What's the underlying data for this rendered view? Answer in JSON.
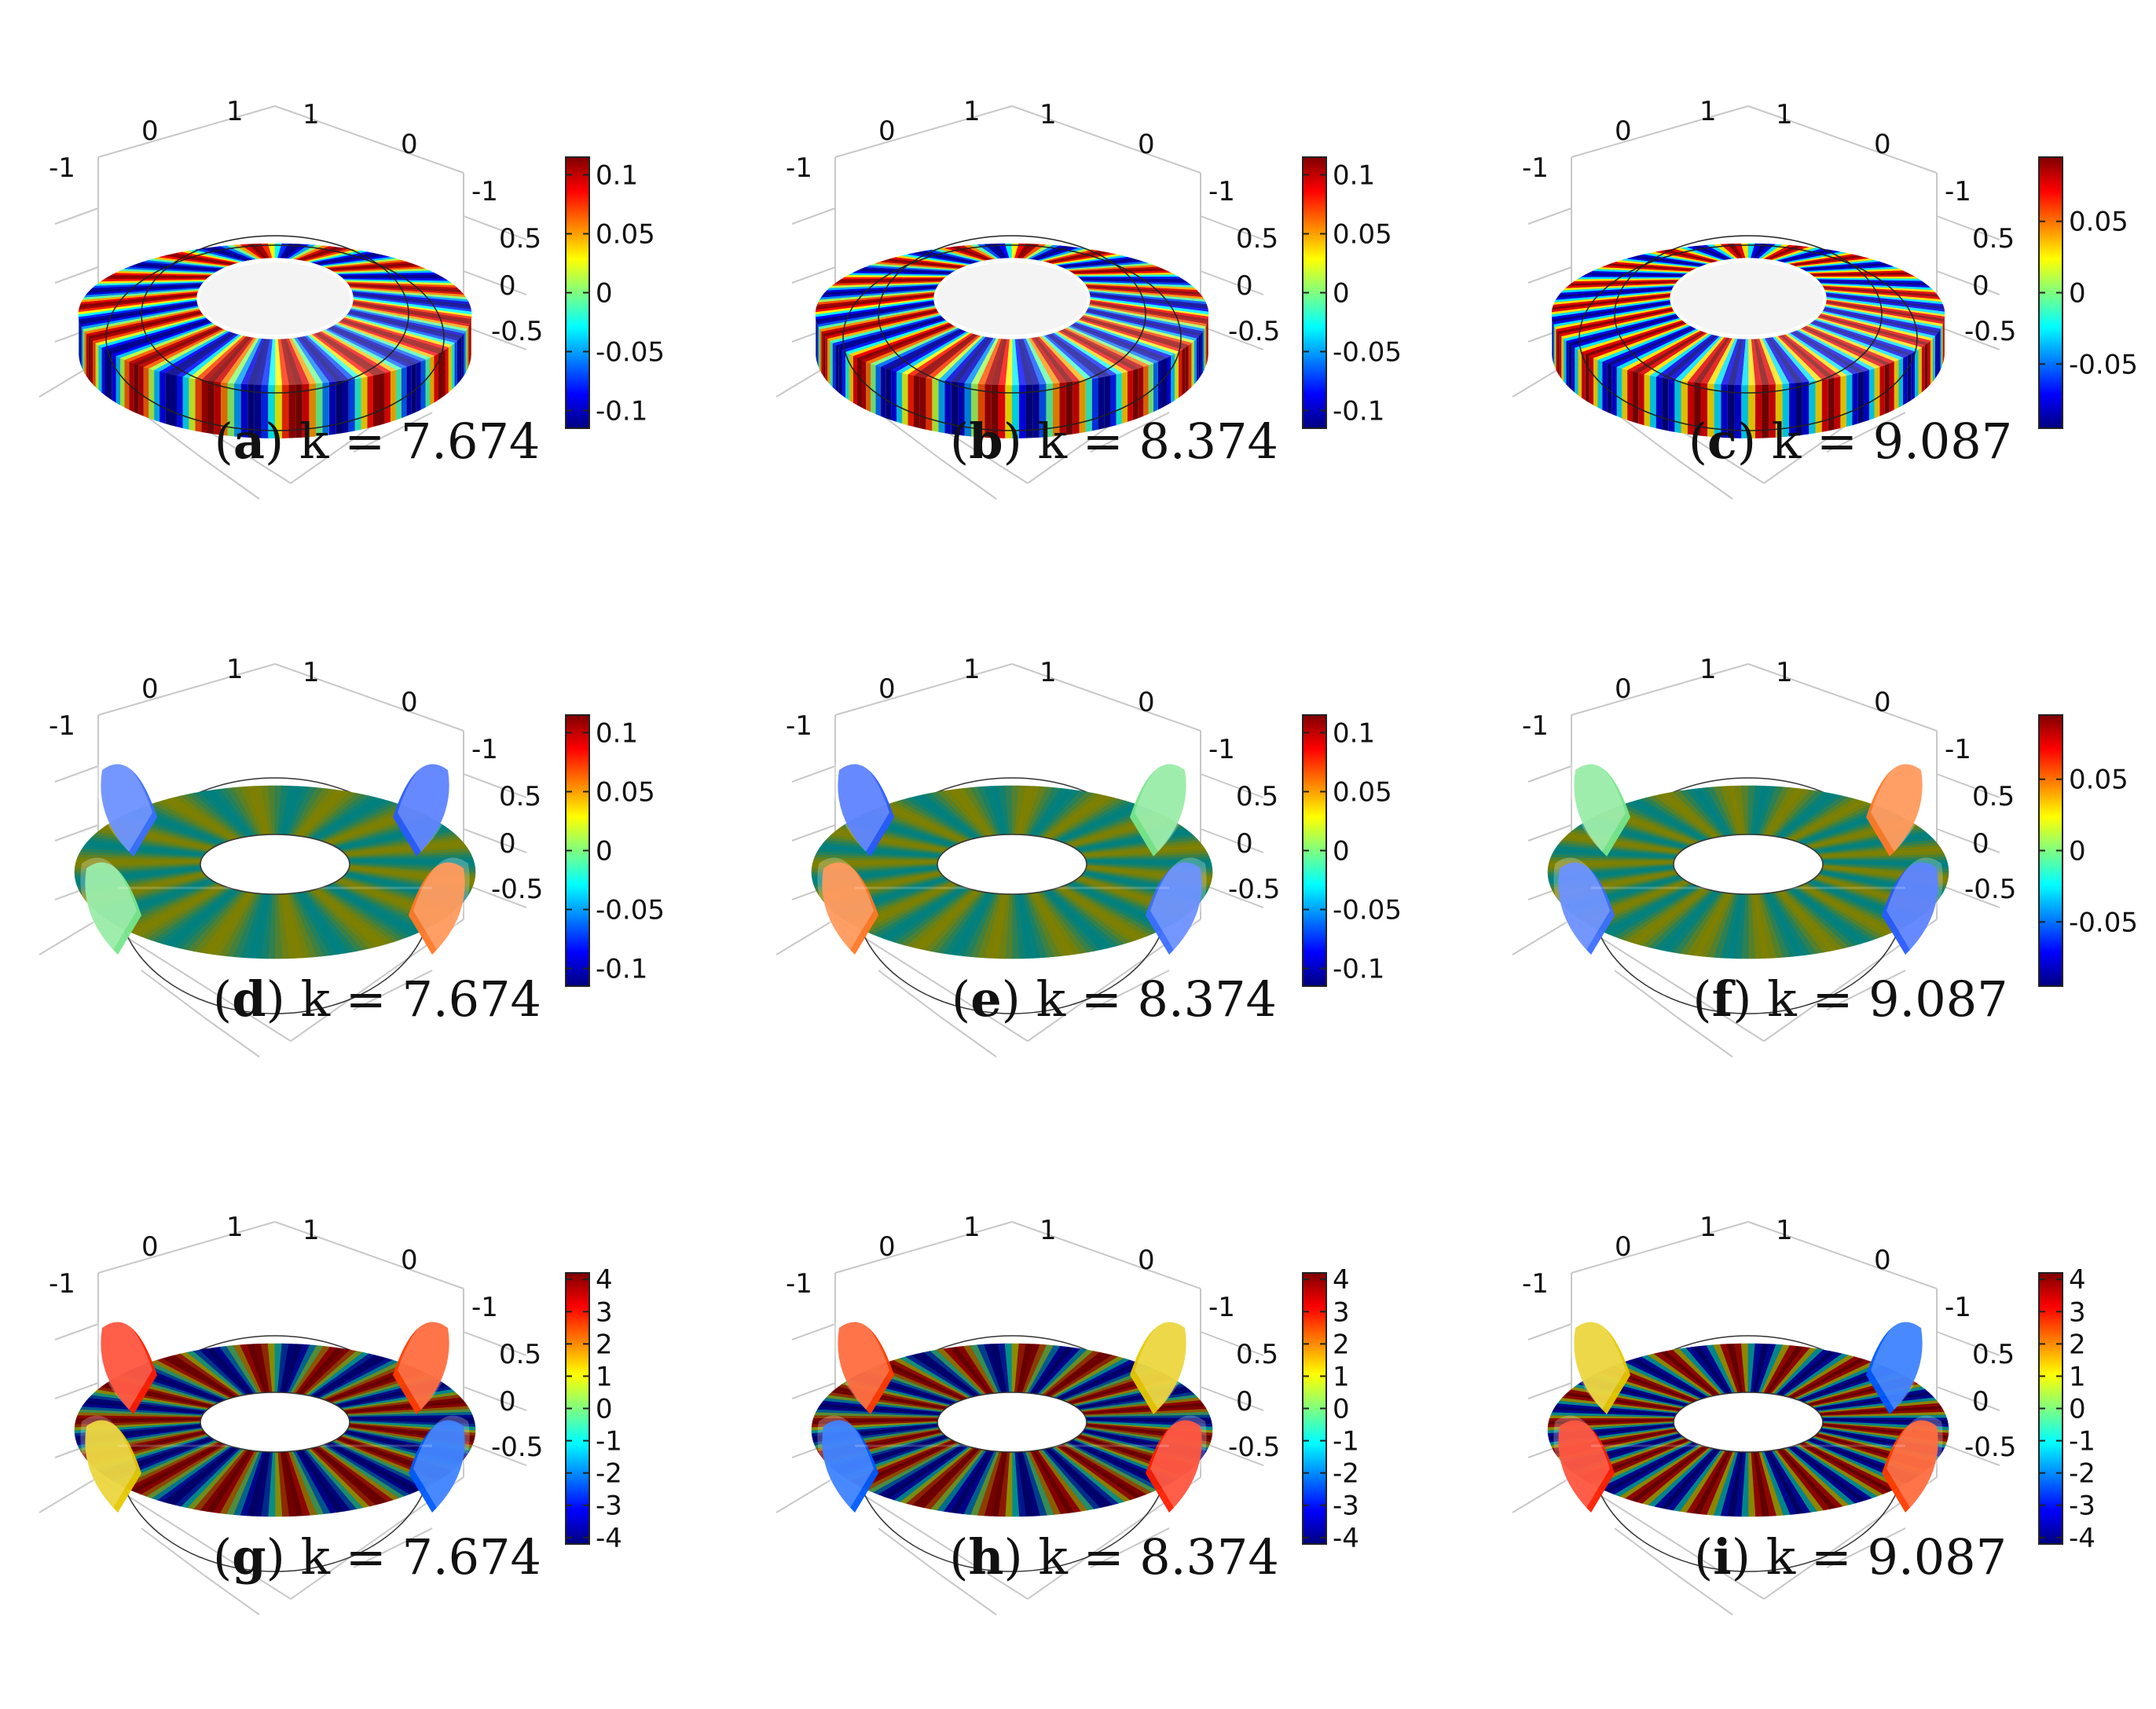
{
  "figure": {
    "panels": [
      {
        "id": "a",
        "letter": "a",
        "k_text": "k = 7.674",
        "mode": "surface",
        "stripes": 7,
        "scale": {
          "range": [
            -0.115,
            0.115
          ],
          "ticks": [
            "-0.1",
            "-0.05",
            "0",
            "0.05",
            "0.1"
          ],
          "tick_values": [
            -0.1,
            -0.05,
            0,
            0.05,
            0.1
          ]
        }
      },
      {
        "id": "b",
        "letter": "b",
        "k_text": "k = 8.374",
        "mode": "surface",
        "stripes": 8,
        "scale": {
          "range": [
            -0.115,
            0.115
          ],
          "ticks": [
            "-0.1",
            "-0.05",
            "0",
            "0.05",
            "0.1"
          ],
          "tick_values": [
            -0.1,
            -0.05,
            0,
            0.05,
            0.1
          ]
        }
      },
      {
        "id": "c",
        "letter": "c",
        "k_text": "k = 9.087",
        "mode": "surface",
        "stripes": 9,
        "scale": {
          "range": [
            -0.095,
            0.095
          ],
          "ticks": [
            "-0.05",
            "0",
            "0.05"
          ],
          "tick_values": [
            -0.05,
            0,
            0.05
          ]
        }
      },
      {
        "id": "d",
        "letter": "d",
        "k_text": "k = 7.674",
        "mode": "section",
        "stripes": 7,
        "scale": {
          "range": [
            -0.115,
            0.115
          ],
          "ticks": [
            "-0.1",
            "-0.05",
            "0",
            "0.05",
            "0.1"
          ],
          "tick_values": [
            -0.1,
            -0.05,
            0,
            0.05,
            0.1
          ]
        }
      },
      {
        "id": "e",
        "letter": "e",
        "k_text": "k = 8.374",
        "mode": "section",
        "stripes": 8,
        "scale": {
          "range": [
            -0.115,
            0.115
          ],
          "ticks": [
            "-0.1",
            "-0.05",
            "0",
            "0.05",
            "0.1"
          ],
          "tick_values": [
            -0.1,
            -0.05,
            0,
            0.05,
            0.1
          ]
        }
      },
      {
        "id": "f",
        "letter": "f",
        "k_text": "k = 9.087",
        "mode": "section",
        "stripes": 9,
        "scale": {
          "range": [
            -0.095,
            0.095
          ],
          "ticks": [
            "-0.05",
            "0",
            "0.05"
          ],
          "tick_values": [
            -0.05,
            0,
            0.05
          ]
        }
      },
      {
        "id": "g",
        "letter": "g",
        "k_text": "k = 7.674",
        "mode": "interior",
        "stripes": 7,
        "scale": {
          "range": [
            -4.2,
            4.2
          ],
          "ticks": [
            "-4",
            "-3",
            "-2",
            "-1",
            "0",
            "1",
            "2",
            "3",
            "4"
          ],
          "tick_values": [
            -4,
            -3,
            -2,
            -1,
            0,
            1,
            2,
            3,
            4
          ]
        }
      },
      {
        "id": "h",
        "letter": "h",
        "k_text": "k = 8.374",
        "mode": "interior",
        "stripes": 8,
        "scale": {
          "range": [
            -4.2,
            4.2
          ],
          "ticks": [
            "-4",
            "-3",
            "-2",
            "-1",
            "0",
            "1",
            "2",
            "3",
            "4"
          ],
          "tick_values": [
            -4,
            -3,
            -2,
            -1,
            0,
            1,
            2,
            3,
            4
          ]
        }
      },
      {
        "id": "i",
        "letter": "i",
        "k_text": "k = 9.087",
        "mode": "interior",
        "stripes": 9,
        "scale": {
          "range": [
            -4.2,
            4.2
          ],
          "ticks": [
            "-4",
            "-3",
            "-2",
            "-1",
            "0",
            "1",
            "2",
            "3",
            "4"
          ],
          "tick_values": [
            -4,
            -3,
            -2,
            -1,
            0,
            1,
            2,
            3,
            4
          ]
        }
      }
    ],
    "axes": {
      "x_ticks": [
        "-1",
        "0",
        "1"
      ],
      "y_ticks": [
        "1",
        "0",
        "-1"
      ],
      "z_ticks": [
        "0.5",
        "0",
        "-0.5"
      ]
    },
    "colormap": [
      "#00007f",
      "#0000ff",
      "#007fff",
      "#00ffff",
      "#7fff7f",
      "#ffff00",
      "#ff7f00",
      "#ff0000",
      "#7f0000"
    ]
  }
}
